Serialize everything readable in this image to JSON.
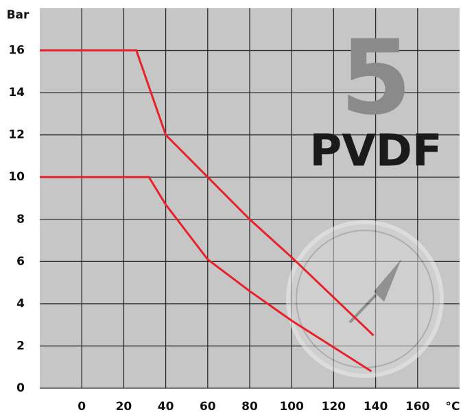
{
  "chart_data": {
    "type": "line",
    "y_label": "Bar",
    "x_label": "°C",
    "annotations": [
      "5",
      "PVDF"
    ],
    "series": [
      {
        "color": "#e8202a",
        "x": [
          -20,
          26,
          40,
          60,
          80,
          100,
          139
        ],
        "values": [
          16,
          16,
          12,
          10,
          8,
          6.2,
          2.5
        ]
      },
      {
        "color": "#e8202a",
        "x": [
          -20,
          32,
          40,
          60,
          80,
          100,
          138
        ],
        "values": [
          10,
          10,
          8.7,
          6.1,
          4.6,
          3.2,
          0.8
        ]
      }
    ],
    "xlim": [
      -20,
      180
    ],
    "xticks": [
      0,
      20,
      40,
      60,
      80,
      100,
      120,
      140,
      160
    ],
    "ylim": [
      0,
      18
    ],
    "yticks": [
      0,
      2,
      4,
      6,
      8,
      10,
      12,
      14,
      16
    ],
    "grid": true
  }
}
